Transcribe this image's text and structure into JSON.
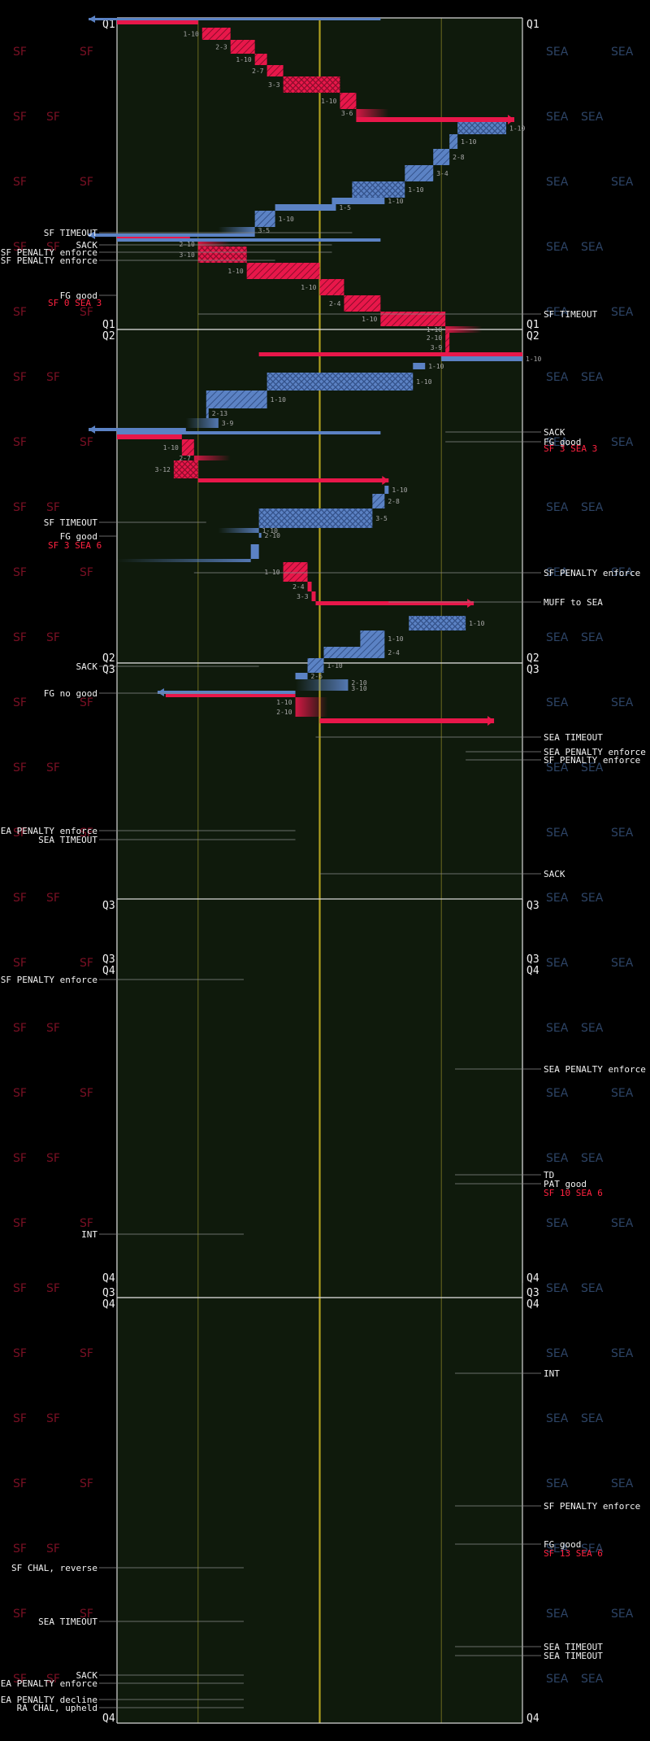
{
  "chart_data": {
    "type": "drive-chart",
    "teams": {
      "left": {
        "code": "SF",
        "color": "#e8174a",
        "watermark": "#7a1024"
      },
      "right": {
        "code": "SEA",
        "color": "#5b82c4",
        "watermark": "#2d4466"
      }
    },
    "field": {
      "own_goal_x": 0,
      "opp_goal_x": 100,
      "mid_x": 50
    },
    "quarters": [
      {
        "label": "Q1",
        "start": 0,
        "end": 383
      },
      {
        "label": "Q2",
        "start": 383,
        "end": 793
      },
      {
        "label": "Q3",
        "start": 793,
        "end": 1163
      },
      {
        "label": "Q4",
        "start": 1163,
        "end": 1555
      }
    ],
    "plays": [
      {
        "t": 0,
        "h": 8,
        "team": "SF",
        "from": 0,
        "to": 20,
        "down": "",
        "pattern": "plain"
      },
      {
        "t": 0,
        "h": 3,
        "team": "SEA",
        "from": 65,
        "to": -7,
        "down": "",
        "pattern": "arrow"
      },
      {
        "t": 12,
        "h": 15,
        "team": "SF",
        "from": 21,
        "to": 28,
        "down": "1-10",
        "pattern": "diag"
      },
      {
        "t": 27,
        "h": 17,
        "team": "SF",
        "from": 28,
        "to": 34,
        "down": "2-3",
        "pattern": "diag"
      },
      {
        "t": 44,
        "h": 14,
        "team": "SF",
        "from": 34,
        "to": 37,
        "down": "1-10",
        "pattern": "diag"
      },
      {
        "t": 58,
        "h": 14,
        "team": "SF",
        "from": 37,
        "to": 41,
        "down": "2-7",
        "pattern": "diag"
      },
      {
        "t": 72,
        "h": 20,
        "team": "SF",
        "from": 41,
        "to": 55,
        "down": "3-3",
        "pattern": "cross"
      },
      {
        "t": 92,
        "h": 20,
        "team": "SF",
        "from": 55,
        "to": 59,
        "down": "1-10",
        "pattern": "diag"
      },
      {
        "t": 112,
        "h": 10,
        "team": "SF",
        "from": 59,
        "to": 59,
        "down": "3-6",
        "pattern": "fade"
      },
      {
        "t": 122,
        "h": 6,
        "team": "SF",
        "from": 59,
        "to": 98,
        "down": "",
        "pattern": "arrow"
      },
      {
        "t": 128,
        "h": 15,
        "team": "SEA",
        "from": 96,
        "to": 84,
        "down": "1-10",
        "pattern": "cross"
      },
      {
        "t": 143,
        "h": 18,
        "team": "SEA",
        "from": 84,
        "to": 82,
        "down": "1-10",
        "pattern": "diag"
      },
      {
        "t": 161,
        "h": 20,
        "team": "SEA",
        "from": 82,
        "to": 78,
        "down": "2-8",
        "pattern": "diag"
      },
      {
        "t": 181,
        "h": 20,
        "team": "SEA",
        "from": 78,
        "to": 71,
        "down": "3-4",
        "pattern": "diag"
      },
      {
        "t": 201,
        "h": 20,
        "team": "SEA",
        "from": 71,
        "to": 58,
        "down": "1-10",
        "pattern": "cross"
      },
      {
        "t": 221,
        "h": 8,
        "team": "SEA",
        "from": 66,
        "to": 53,
        "down": "1-10",
        "pattern": "plain"
      },
      {
        "t": 229,
        "h": 8,
        "team": "SEA",
        "from": 54,
        "to": 39,
        "down": "1-5",
        "pattern": "plain"
      },
      {
        "t": 237,
        "h": 20,
        "team": "SEA",
        "from": 39,
        "to": 34,
        "down": "1-10",
        "pattern": "diag"
      },
      {
        "t": 257,
        "h": 8,
        "team": "SEA",
        "from": 34,
        "to": 25,
        "down": "3-5",
        "pattern": "fade"
      },
      {
        "t": 265,
        "h": 4,
        "team": "SEA",
        "from": 34,
        "to": -7,
        "down": "",
        "pattern": "arrow"
      },
      {
        "t": 269,
        "h": 4,
        "team": "SF",
        "from": 0,
        "to": 18,
        "down": "",
        "pattern": "plain"
      },
      {
        "t": 271,
        "h": 4,
        "team": "SEA",
        "from": 65,
        "to": 0,
        "down": "",
        "pattern": "plain"
      },
      {
        "t": 275,
        "h": 6,
        "team": "SF",
        "from": 20,
        "to": 28,
        "down": "2-10",
        "pattern": "fade"
      },
      {
        "t": 281,
        "h": 20,
        "team": "SF",
        "from": 20,
        "to": 32,
        "down": "3-10",
        "pattern": "cross"
      },
      {
        "t": 301,
        "h": 20,
        "team": "SF",
        "from": 32,
        "to": 50,
        "down": "1-10",
        "pattern": "diag"
      },
      {
        "t": 321,
        "h": 20,
        "team": "SF",
        "from": 50,
        "to": 56,
        "down": "1-10",
        "pattern": "diag"
      },
      {
        "t": 341,
        "h": 20,
        "team": "SF",
        "from": 56,
        "to": 65,
        "down": "2-4",
        "pattern": "diag"
      },
      {
        "t": 361,
        "h": 18,
        "team": "SF",
        "from": 65,
        "to": 81,
        "down": "1-10",
        "pattern": "diag"
      },
      {
        "t": 379,
        "h": 8,
        "team": "SF",
        "from": 81,
        "to": 90,
        "down": "1-10",
        "pattern": "fade"
      },
      {
        "t": 387,
        "h": 12,
        "team": "SF",
        "from": 81,
        "to": 82,
        "down": "2-10",
        "pattern": "diag"
      },
      {
        "t": 399,
        "h": 12,
        "team": "SF",
        "from": 81,
        "to": 82,
        "down": "3-9",
        "pattern": "diag"
      },
      {
        "t": 411,
        "h": 5,
        "team": "SF",
        "from": 35,
        "to": 100,
        "down": "",
        "pattern": "plain"
      },
      {
        "t": 416,
        "h": 6,
        "team": "SEA",
        "from": 100,
        "to": 80,
        "down": "1-10",
        "pattern": "plain"
      },
      {
        "t": 424,
        "h": 8,
        "team": "SEA",
        "from": 76,
        "to": 73,
        "down": "1-10",
        "pattern": "plain"
      },
      {
        "t": 436,
        "h": 22,
        "team": "SEA",
        "from": 73,
        "to": 37,
        "down": "1-10",
        "pattern": "cross"
      },
      {
        "t": 458,
        "h": 22,
        "team": "SEA",
        "from": 37,
        "to": 22,
        "down": "1-10",
        "pattern": "diag"
      },
      {
        "t": 480,
        "h": 12,
        "team": "SEA",
        "from": 22,
        "to": 22,
        "down": "2-13",
        "pattern": "diag"
      },
      {
        "t": 492,
        "h": 12,
        "team": "SEA",
        "from": 22,
        "to": 17,
        "down": "3-9",
        "pattern": "fade"
      },
      {
        "t": 504,
        "h": 4,
        "team": "SEA",
        "from": 17,
        "to": -7,
        "down": "",
        "pattern": "arrow"
      },
      {
        "t": 508,
        "h": 4,
        "team": "SEA",
        "from": 65,
        "to": 0,
        "down": "",
        "pattern": "plain"
      },
      {
        "t": 512,
        "h": 6,
        "team": "SF",
        "from": 0,
        "to": 16,
        "down": "",
        "pattern": "plain"
      },
      {
        "t": 518,
        "h": 20,
        "team": "SF",
        "from": 16,
        "to": 19,
        "down": "1-10",
        "pattern": "diag"
      },
      {
        "t": 538,
        "h": 6,
        "team": "SF",
        "from": 19,
        "to": 28,
        "down": "2-7",
        "pattern": "fade"
      },
      {
        "t": 544,
        "h": 22,
        "team": "SF",
        "from": 14,
        "to": 20,
        "down": "3-12",
        "pattern": "cross"
      },
      {
        "t": 566,
        "h": 5,
        "team": "SF",
        "from": 20,
        "to": 67,
        "down": "",
        "pattern": "arrow"
      },
      {
        "t": 575,
        "h": 10,
        "team": "SEA",
        "from": 67,
        "to": 66,
        "down": "1-10",
        "pattern": "plain"
      },
      {
        "t": 585,
        "h": 18,
        "team": "SEA",
        "from": 66,
        "to": 63,
        "down": "2-8",
        "pattern": "diag"
      },
      {
        "t": 603,
        "h": 24,
        "team": "SEA",
        "from": 63,
        "to": 35,
        "down": "3-5",
        "pattern": "cross"
      },
      {
        "t": 627,
        "h": 6,
        "team": "SEA",
        "from": 35,
        "to": 25,
        "down": "1-10",
        "pattern": "fade"
      },
      {
        "t": 633,
        "h": 6,
        "team": "SEA",
        "from": 35,
        "to": 35,
        "down": "2-10",
        "pattern": "plain"
      },
      {
        "t": 647,
        "h": 18,
        "team": "SEA",
        "from": 35,
        "to": 33,
        "down": "",
        "pattern": "plain"
      },
      {
        "t": 665,
        "h": 4,
        "team": "SEA",
        "from": 33,
        "to": 0,
        "down": "",
        "pattern": "fade"
      },
      {
        "t": 669,
        "h": 24,
        "team": "SF",
        "from": 41,
        "to": 47,
        "down": "1-10",
        "pattern": "diag"
      },
      {
        "t": 693,
        "h": 12,
        "team": "SF",
        "from": 47,
        "to": 48,
        "down": "2-4",
        "pattern": "plain"
      },
      {
        "t": 705,
        "h": 12,
        "team": "SF",
        "from": 48,
        "to": 49,
        "down": "3-3",
        "pattern": "plain"
      },
      {
        "t": 717,
        "h": 5,
        "team": "SF",
        "from": 49,
        "to": 88,
        "down": "",
        "pattern": "arrow"
      },
      {
        "t": 735,
        "h": 18,
        "team": "SEA",
        "from": 86,
        "to": 72,
        "down": "1-10",
        "pattern": "cross"
      },
      {
        "t": 753,
        "h": 20,
        "team": "SEA",
        "from": 66,
        "to": 60,
        "down": "1-10",
        "pattern": "diag"
      },
      {
        "t": 773,
        "h": 14,
        "team": "SEA",
        "from": 66,
        "to": 51,
        "down": "2-4",
        "pattern": "diag"
      },
      {
        "t": 787,
        "h": 18,
        "team": "SEA",
        "from": 51,
        "to": 47,
        "down": "1-10",
        "pattern": "diag"
      },
      {
        "t": 805,
        "h": 8,
        "team": "SEA",
        "from": 47,
        "to": 44,
        "down": "2-6",
        "pattern": "plain"
      },
      {
        "t": 813,
        "h": 8,
        "team": "SEA",
        "from": 57,
        "to": 44,
        "down": "2-10",
        "pattern": "fade"
      },
      {
        "t": 821,
        "h": 6,
        "team": "SEA",
        "from": 57,
        "to": 44,
        "down": "3-10",
        "pattern": "fade"
      },
      {
        "t": 827,
        "h": 4,
        "team": "SEA",
        "from": 44,
        "to": 10,
        "down": "",
        "pattern": "arrow"
      },
      {
        "t": 831,
        "h": 4,
        "team": "SF",
        "from": 12,
        "to": 44,
        "down": "",
        "pattern": "plain"
      },
      {
        "t": 835,
        "h": 12,
        "team": "SF",
        "from": 44,
        "to": 50,
        "down": "1-10",
        "pattern": "fade"
      },
      {
        "t": 847,
        "h": 12,
        "team": "SF",
        "from": 44,
        "to": 50,
        "down": "2-10",
        "pattern": "fade"
      },
      {
        "t": 861,
        "h": 6,
        "team": "SF",
        "from": 50,
        "to": 93,
        "down": "",
        "pattern": "arrow"
      }
    ],
    "annotations": [
      {
        "t": 268,
        "text": "SF TIMEOUT",
        "side": "left",
        "anchor_x": 58
      },
      {
        "t": 283,
        "text": "SACK",
        "side": "left",
        "anchor_x": 53
      },
      {
        "t": 292,
        "text": "SF PENALTY enforce",
        "side": "left",
        "anchor_x": 53
      },
      {
        "t": 302,
        "text": "SF PENALTY enforce",
        "side": "left",
        "anchor_x": 39
      },
      {
        "t": 345,
        "text": "FG good",
        "side": "left",
        "anchor_x": 0
      },
      {
        "t": 368,
        "text": "SF TIMEOUT",
        "side": "right",
        "anchor_x": 20
      },
      {
        "t": 513,
        "text": "SACK",
        "side": "right",
        "anchor_x": 81
      },
      {
        "t": 525,
        "text": "FG good",
        "side": "right",
        "anchor_x": 81
      },
      {
        "t": 624,
        "text": "SF TIMEOUT",
        "side": "left",
        "anchor_x": 22
      },
      {
        "t": 641,
        "text": "FG good",
        "side": "left",
        "anchor_x": 0
      },
      {
        "t": 686,
        "text": "SF PENALTY enforce",
        "side": "right",
        "anchor_x": 19
      },
      {
        "t": 722,
        "text": "MUFF to SEA",
        "side": "right",
        "anchor_x": 67
      },
      {
        "t": 801,
        "text": "SACK",
        "side": "left",
        "anchor_x": 35
      },
      {
        "t": 834,
        "text": "FG no good",
        "side": "left",
        "anchor_x": 33
      },
      {
        "t": 888,
        "text": "SEA TIMEOUT",
        "side": "right",
        "anchor_x": 49
      },
      {
        "t": 906,
        "text": "SEA PENALTY enforce",
        "side": "right",
        "anchor_x": 86
      },
      {
        "t": 916,
        "text": "SF PENALTY enforce",
        "side": "right",
        "anchor_x": 86
      },
      {
        "t": 1003,
        "text": "SEA PENALTY enforce",
        "side": "left",
        "anchor_x": 44
      },
      {
        "t": 1014,
        "text": "SEA TIMEOUT",
        "side": "left",
        "anchor_x": 44
      },
      {
        "t": 1056,
        "text": "SACK",
        "side": "right",
        "anchor_x": 50
      }
    ],
    "scores": [
      {
        "t": 354,
        "text": "SF 0 SEA 3",
        "side": "left"
      },
      {
        "t": 533,
        "text": "SF 3 SEA 3",
        "side": "right"
      },
      {
        "t": 652,
        "text": "SF 3 SEA 6",
        "side": "left"
      }
    ],
    "xlabel": "",
    "ylabel": ""
  },
  "q34_part": {
    "quarters": [
      {
        "label": "Q3",
        "start": 1105,
        "end": 1595
      },
      {
        "label": "Q4",
        "start": 1595,
        "end": 2118
      }
    ],
    "annotations": [
      {
        "t": 1208,
        "text": "SF PENALTY enforce",
        "side": "left"
      },
      {
        "t": 1318,
        "text": "SEA PENALTY enforce",
        "side": "right"
      },
      {
        "t": 1448,
        "text": "TD",
        "side": "right"
      },
      {
        "t": 1459,
        "text": "PAT good",
        "side": "right"
      },
      {
        "t": 1521,
        "text": "INT",
        "side": "left"
      },
      {
        "t": 1692,
        "text": "INT",
        "side": "right"
      },
      {
        "t": 1855,
        "text": "SF PENALTY enforce",
        "side": "right"
      },
      {
        "t": 1902,
        "text": "FG good",
        "side": "right"
      },
      {
        "t": 1931,
        "text": "SF CHAL, reverse",
        "side": "left"
      },
      {
        "t": 1997,
        "text": "SEA TIMEOUT",
        "side": "left"
      },
      {
        "t": 2028,
        "text": "SEA TIMEOUT",
        "side": "right"
      },
      {
        "t": 2039,
        "text": "SEA TIMEOUT",
        "side": "right"
      },
      {
        "t": 2063,
        "text": "SACK",
        "side": "left"
      },
      {
        "t": 2073,
        "text": "SEA PENALTY enforce",
        "side": "left"
      },
      {
        "t": 2093,
        "text": "SEA PENALTY decline",
        "side": "left"
      },
      {
        "t": 2103,
        "text": "RA CHAL, upheld",
        "side": "left"
      }
    ],
    "scores": [
      {
        "t": 1470,
        "text": "SF 10 SEA 6",
        "side": "right"
      },
      {
        "t": 1913,
        "text": "SF 13 SEA 6",
        "side": "right"
      }
    ]
  }
}
